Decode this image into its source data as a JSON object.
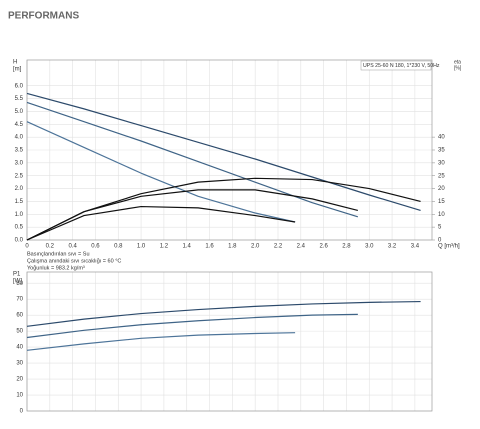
{
  "title": "PERFORMANS",
  "notes": [
    "Basınçlandırılan sıvı = Su",
    "Çalışma anındaki sıvı sıcaklığı = 60 °C",
    "Yoğunluk = 983.2 kg/m³"
  ],
  "chart_data": [
    {
      "type": "line",
      "subtitle": "UPS 25-60 N 180, 1*230 V, 50Hz",
      "ylabel": "H",
      "yunit": "[m]",
      "y2label": "eta",
      "y2unit": "[%]",
      "xlabel": "Q [m³/h]",
      "xlim": [
        0,
        3.55
      ],
      "xticks": [
        0,
        0.2,
        0.4,
        0.6,
        0.8,
        {
          "value": 1,
          "label": "1.0"
        },
        1.2,
        1.4,
        1.6,
        1.8,
        {
          "value": 2,
          "label": "2.0"
        },
        2.2,
        2.4,
        2.6,
        2.8,
        {
          "value": 3,
          "label": "3.0"
        },
        3.2,
        3.4
      ],
      "ylim": [
        0,
        7
      ],
      "yticks": [
        {
          "value": 0,
          "label": "0.0"
        },
        0.5,
        {
          "value": 1,
          "label": "1.0"
        },
        1.5,
        {
          "value": 2,
          "label": "2.0"
        },
        2.5,
        {
          "value": 3,
          "label": "3.0"
        },
        3.5,
        {
          "value": 4,
          "label": "4.0"
        },
        4.5,
        {
          "value": 5,
          "label": "5.0"
        },
        5.5,
        {
          "value": 6,
          "label": "6.0"
        }
      ],
      "y2lim": [
        0,
        70
      ],
      "y2ticks": [
        0,
        5,
        10,
        15,
        20,
        25,
        30,
        35,
        40
      ],
      "grid": true,
      "series": [
        {
          "color": "#2c4a6b",
          "x": [
            0,
            0.5,
            1,
            1.5,
            2,
            2.5,
            3,
            3.45
          ],
          "values": [
            5.7,
            5.1,
            4.45,
            3.8,
            3.15,
            2.45,
            1.75,
            1.15
          ]
        },
        {
          "color": "#3f6487",
          "x": [
            0,
            0.5,
            1,
            1.5,
            2,
            2.5,
            2.9
          ],
          "values": [
            5.35,
            4.6,
            3.85,
            3.05,
            2.25,
            1.45,
            0.9
          ]
        },
        {
          "color": "#4d7499",
          "x": [
            0,
            0.5,
            1,
            1.5,
            2,
            2.35
          ],
          "values": [
            4.6,
            3.6,
            2.6,
            1.7,
            1.05,
            0.7
          ]
        },
        {
          "color": "#111111",
          "axis": "y2",
          "x": [
            0,
            0.5,
            1,
            1.5,
            2,
            2.5,
            3,
            3.45
          ],
          "values": [
            0,
            11,
            18,
            22.5,
            24,
            23.5,
            20,
            15
          ]
        },
        {
          "color": "#111111",
          "axis": "y2",
          "x": [
            0,
            0.5,
            1,
            1.5,
            2,
            2.5,
            2.9
          ],
          "values": [
            0,
            11,
            17,
            19.5,
            19.5,
            16,
            11.5
          ]
        },
        {
          "color": "#111111",
          "axis": "y2",
          "x": [
            0,
            0.5,
            1,
            1.5,
            2,
            2.35
          ],
          "values": [
            0,
            9.5,
            13,
            12.5,
            9.5,
            7
          ]
        }
      ]
    },
    {
      "type": "line",
      "ylabel": "P1",
      "yunit": "[W]",
      "xlim": [
        0,
        3.55
      ],
      "xticks": [
        0,
        0.2,
        0.4,
        0.6,
        0.8,
        1,
        1.2,
        1.4,
        1.6,
        1.8,
        2,
        2.2,
        2.4,
        2.6,
        2.8,
        3,
        3.2,
        3.4
      ],
      "ylim": [
        0,
        87
      ],
      "yticks": [
        0,
        10,
        20,
        30,
        40,
        50,
        60,
        70,
        80
      ],
      "grid": true,
      "series": [
        {
          "color": "#2c4a6b",
          "x": [
            0,
            0.5,
            1,
            1.5,
            2,
            2.5,
            3,
            3.45
          ],
          "values": [
            53,
            57.5,
            61,
            63.5,
            65.5,
            67,
            68,
            68.5
          ]
        },
        {
          "color": "#3f6487",
          "x": [
            0,
            0.5,
            1,
            1.5,
            2,
            2.5,
            2.9
          ],
          "values": [
            46,
            50.5,
            54,
            56.5,
            58.5,
            60,
            60.5
          ]
        },
        {
          "color": "#4d7499",
          "x": [
            0,
            0.5,
            1,
            1.5,
            2,
            2.35
          ],
          "values": [
            38,
            42,
            45.5,
            47.5,
            48.5,
            49
          ]
        }
      ]
    }
  ]
}
